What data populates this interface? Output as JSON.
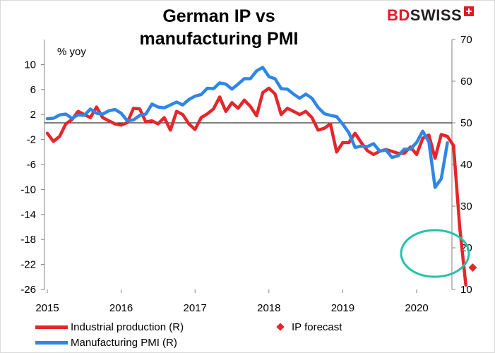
{
  "title_line1": "German IP vs",
  "title_line2": "manufacturing PMI",
  "logo": {
    "bd": "BD",
    "swiss": "SWISS"
  },
  "unit_label": "% yoy",
  "legend": {
    "ip": "Industrial production (R)",
    "forecast": "IP forecast",
    "pmi": "Manufacturing PMI (R)"
  },
  "colors": {
    "ip": "#e5262b",
    "pmi": "#2f86e6",
    "circle": "#22c3a9"
  },
  "chart_data": {
    "type": "line",
    "x_ticks": [
      "2015",
      "2016",
      "2017",
      "2018",
      "2019",
      "2020"
    ],
    "left_axis": {
      "ylim": [
        -26,
        14
      ],
      "ticks": [
        10,
        6,
        2,
        -2,
        -6,
        -10,
        -14,
        -18,
        -22,
        -26
      ]
    },
    "right_axis": {
      "ylim": [
        10,
        70
      ],
      "ticks": [
        70,
        60,
        50,
        40,
        30,
        20,
        10
      ]
    },
    "grid": false,
    "legend_position": "bottom",
    "series": [
      {
        "name": "Industrial production (R)",
        "axis": "left",
        "values": [
          -1.0,
          -2.3,
          -1.5,
          0.5,
          1.2,
          2.5,
          2.0,
          1.5,
          3.2,
          1.5,
          1.0,
          0.5,
          0.3,
          0.7,
          3.0,
          2.9,
          0.8,
          1.0,
          0.5,
          1.5,
          -0.5,
          2.5,
          2.0,
          0.5,
          -0.4,
          1.5,
          2.1,
          2.9,
          4.8,
          2.5,
          3.9,
          3.0,
          4.3,
          3.3,
          1.8,
          5.5,
          6.2,
          5.3,
          2.0,
          3.0,
          2.5,
          2.0,
          2.5,
          1.5,
          -0.5,
          -0.2,
          0.5,
          -4.0,
          -2.5,
          -2.5,
          -1.0,
          -2.5,
          -3.8,
          -4.4,
          -3.9,
          -3.6,
          -3.9,
          -4.2,
          -4.2,
          -3.2,
          -4.4,
          -1.8,
          -1.3,
          -5.0,
          -1.2,
          -1.5,
          -3.0,
          -16.0,
          -25.3
        ]
      },
      {
        "name": "Manufacturing PMI (R)",
        "axis": "right",
        "values": [
          51.0,
          51.1,
          51.9,
          52.1,
          51.1,
          51.9,
          51.8,
          53.3,
          52.3,
          52.1,
          52.9,
          53.2,
          52.3,
          50.5,
          50.7,
          51.8,
          52.1,
          54.5,
          53.8,
          53.6,
          54.3,
          55.0,
          54.3,
          55.6,
          56.4,
          56.8,
          58.3,
          58.2,
          59.6,
          59.3,
          58.1,
          59.3,
          60.6,
          60.6,
          62.5,
          63.3,
          61.1,
          60.6,
          58.2,
          58.1,
          56.9,
          55.9,
          56.9,
          55.9,
          53.7,
          52.2,
          51.8,
          51.5,
          49.7,
          47.6,
          44.1,
          44.4,
          44.3,
          45.0,
          43.2,
          43.5,
          41.7,
          42.1,
          43.7,
          43.7,
          45.3,
          48.0,
          45.4,
          34.5,
          36.6,
          45.2
        ]
      }
    ],
    "forecast": {
      "name": "IP forecast",
      "value": -22.5
    }
  }
}
